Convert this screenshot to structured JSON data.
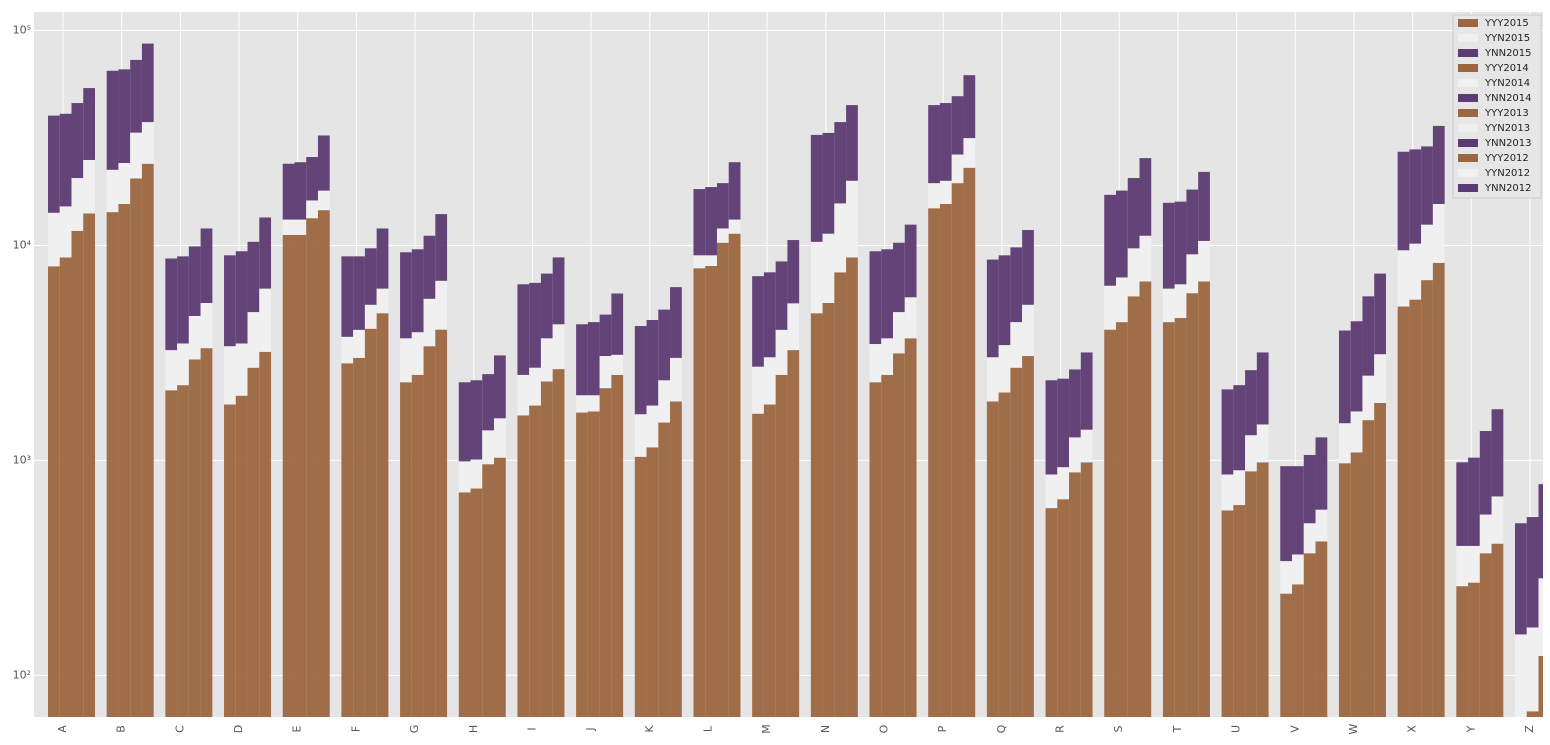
{
  "chart_data": {
    "type": "bar",
    "stacked": true,
    "log": true,
    "grid": true,
    "legend": "upper right",
    "categories": [
      "A",
      "B",
      "C",
      "D",
      "E",
      "F",
      "G",
      "H",
      "I",
      "J",
      "K",
      "L",
      "M",
      "N",
      "O",
      "P",
      "Q",
      "R",
      "S",
      "T",
      "U",
      "V",
      "W",
      "X",
      "Y",
      "Z"
    ],
    "ylim": [
      64,
      122000
    ],
    "yticks": [
      {
        "value": 100,
        "label": "10²"
      },
      {
        "value": 1000,
        "label": "10³"
      },
      {
        "value": 10000,
        "label": "10⁴"
      },
      {
        "value": 100000,
        "label": "10⁵"
      }
    ],
    "series": [
      {
        "name": "YYY2015",
        "color": "#9c6640",
        "values": [
          8000,
          14300,
          2120,
          1820,
          11200,
          2830,
          2310,
          710,
          1620,
          1670,
          1040,
          7840,
          1650,
          4840,
          2310,
          14900,
          1880,
          600,
          4060,
          4400,
          585,
          240,
          970,
          5200,
          260,
          50
        ]
      },
      {
        "name": "YYN2015",
        "color": "#f0f0f0",
        "values": [
          6200,
          8200,
          1140,
          1580,
          2000,
          930,
          1390,
          280,
          880,
          340,
          600,
          1160,
          1080,
          5560,
          1170,
          4600,
          1140,
          260,
          2440,
          1900,
          275,
          100,
          520,
          4300,
          140,
          105
        ]
      },
      {
        "name": "YNN2015",
        "color": "#5c3a72",
        "values": [
          26000,
          42500,
          5440,
          5600,
          10800,
          5140,
          5600,
          1320,
          4100,
          2290,
          2580,
          9300,
          4470,
          22300,
          5920,
          25500,
          5580,
          1500,
          10700,
          9500,
          1280,
          600,
          2530,
          17800,
          580,
          355
        ]
      },
      {
        "name": "YYY2014",
        "color": "#9c6640",
        "values": [
          8800,
          15600,
          2240,
          2000,
          11200,
          3000,
          2500,
          740,
          1800,
          1690,
          1150,
          8030,
          1820,
          5400,
          2500,
          15600,
          2070,
          660,
          4400,
          4600,
          620,
          265,
          1090,
          5600,
          270,
          68
        ]
      },
      {
        "name": "YYN2014",
        "color": "#f0f0f0",
        "values": [
          6400,
          8600,
          1260,
          1500,
          2000,
          1050,
          1450,
          270,
          900,
          320,
          650,
          970,
          1200,
          5950,
          1200,
          4400,
          1370,
          270,
          2700,
          2000,
          280,
          100,
          600,
          4600,
          130,
          99
        ]
      },
      {
        "name": "YNN2014",
        "color": "#5c3a72",
        "values": [
          25800,
          41800,
          5400,
          5900,
          11200,
          4850,
          5650,
          1350,
          4000,
          2390,
          2700,
          9700,
          4480,
          22050,
          5900,
          26000,
          5560,
          1470,
          10900,
          9400,
          1340,
          575,
          2750,
          17800,
          630,
          378
        ]
      },
      {
        "name": "YYY2013",
        "color": "#9c6640",
        "values": [
          11700,
          20500,
          2950,
          2700,
          13400,
          4100,
          3400,
          960,
          2330,
          2170,
          1500,
          10300,
          2500,
          7500,
          3150,
          19500,
          2700,
          880,
          5800,
          6000,
          890,
          370,
          1540,
          6900,
          370,
          123
        ]
      },
      {
        "name": "YYN2013",
        "color": "#f0f0f0",
        "values": [
          8900,
          13000,
          1750,
          2200,
          2800,
          1200,
          2250,
          420,
          1370,
          890,
          860,
          1700,
          1550,
          8200,
          1750,
          7000,
          1700,
          400,
          3900,
          3100,
          420,
          140,
          940,
          5600,
          190,
          160
        ]
      },
      {
        "name": "YNN2013",
        "color": "#5c3a72",
        "values": [
          25400,
          39500,
          5200,
          5500,
          9600,
          4400,
          5450,
          1140,
          3700,
          1710,
          2670,
          7500,
          4380,
          21800,
          5400,
          23000,
          5400,
          1370,
          10900,
          9100,
          1320,
          550,
          3320,
          16400,
          810,
          492
        ]
      },
      {
        "name": "YYY2012",
        "color": "#9c6640",
        "values": [
          14100,
          24000,
          3330,
          3200,
          14600,
          4840,
          4060,
          1030,
          2660,
          2500,
          1880,
          11350,
          3260,
          8800,
          3700,
          23000,
          3060,
          980,
          6800,
          6800,
          980,
          420,
          1850,
          8300,
          410,
          null
        ]
      },
      {
        "name": "YYN2012",
        "color": "#f0f0f0",
        "values": [
          10900,
          13500,
          2070,
          3100,
          3400,
          1460,
          2790,
          540,
          1640,
          600,
          1120,
          1850,
          2120,
          11200,
          2040,
          8600,
          2240,
          410,
          4300,
          3700,
          490,
          170,
          1270,
          7300,
          270,
          null
        ]
      },
      {
        "name": "YNN2012",
        "color": "#5c3a72",
        "values": [
          29000,
          49500,
          6600,
          7200,
          14500,
          5700,
          7150,
          1510,
          4500,
          2880,
          3400,
          11200,
          5220,
          25000,
          6760,
          30400,
          6500,
          1790,
          14400,
          11500,
          1710,
          690,
          4280,
          20400,
          1050,
          null
        ]
      }
    ]
  }
}
